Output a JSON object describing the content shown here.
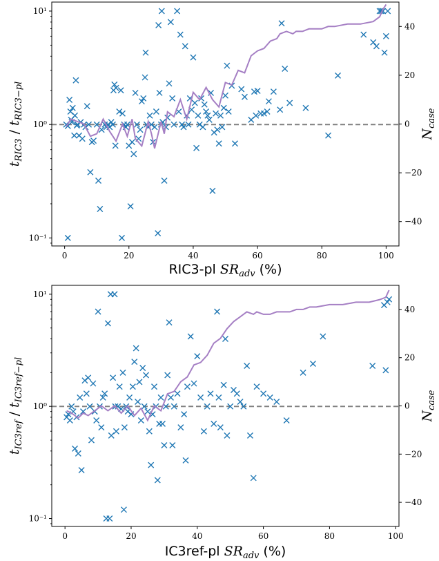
{
  "chart_data": [
    {
      "type": "scatter",
      "xlabel_prefix": "RIC3-pl ",
      "xlabel_math": "SR",
      "xlabel_sub": "adv",
      "xlabel_suffix": " (%)",
      "ylabel_main": "t",
      "ylabel_sub1": "RIC3",
      "ylabel_sub2": "RIC3−pl",
      "y2label_main": "N",
      "y2label_sub": "case",
      "xlim": [
        -4,
        104
      ],
      "ylim": [
        0.085,
        12
      ],
      "yscale": "log",
      "y2lim": [
        -50,
        50
      ],
      "x_ticks": [
        "0",
        "20",
        "40",
        "60",
        "80",
        "100"
      ],
      "y_ticks": [
        "10⁻¹",
        "10⁰",
        "10¹"
      ],
      "y2_ticks": [
        "−40",
        "−20",
        "0",
        "20",
        "40"
      ],
      "reference_y": 1.0,
      "points": [
        [
          1.0,
          0.1
        ],
        [
          0.5,
          1.0
        ],
        [
          1.0,
          0.97
        ],
        [
          1.5,
          1.65
        ],
        [
          1.8,
          1.3
        ],
        [
          2.0,
          1.1
        ],
        [
          2.2,
          1.05
        ],
        [
          2.5,
          1.4
        ],
        [
          3.0,
          0.8
        ],
        [
          3.2,
          1.2
        ],
        [
          3.5,
          2.45
        ],
        [
          3.8,
          0.98
        ],
        [
          4.0,
          1.0
        ],
        [
          4.5,
          0.8
        ],
        [
          5.0,
          1.05
        ],
        [
          5.5,
          0.75
        ],
        [
          6.0,
          1.0
        ],
        [
          6.5,
          0.95
        ],
        [
          7.0,
          1.45
        ],
        [
          7.5,
          1.0
        ],
        [
          8.0,
          0.38
        ],
        [
          8.5,
          0.7
        ],
        [
          9.0,
          0.72
        ],
        [
          10.0,
          1.0
        ],
        [
          10.5,
          0.32
        ],
        [
          11.0,
          0.18
        ],
        [
          11.5,
          0.9
        ],
        [
          12.5,
          1.0
        ],
        [
          13.0,
          0.95
        ],
        [
          13.5,
          1.0
        ],
        [
          14.0,
          0.95
        ],
        [
          14.5,
          1.05
        ],
        [
          15.0,
          1.0
        ],
        [
          15.2,
          2.0
        ],
        [
          15.5,
          2.25
        ],
        [
          15.8,
          0.65
        ],
        [
          16.0,
          2.1
        ],
        [
          17.0,
          1.3
        ],
        [
          17.5,
          2.0
        ],
        [
          17.8,
          0.1
        ],
        [
          18.0,
          1.25
        ],
        [
          18.5,
          1.0
        ],
        [
          19.0,
          0.95
        ],
        [
          19.5,
          1.0
        ],
        [
          20.0,
          0.65
        ],
        [
          20.5,
          0.19
        ],
        [
          21.0,
          0.7
        ],
        [
          21.5,
          0.55
        ],
        [
          22.0,
          1.9
        ],
        [
          22.5,
          1.0
        ],
        [
          23.0,
          0.75
        ],
        [
          23.5,
          0.9
        ],
        [
          24.0,
          1.6
        ],
        [
          24.5,
          1.7
        ],
        [
          25.0,
          2.6
        ],
        [
          25.2,
          4.3
        ],
        [
          25.5,
          1.0
        ],
        [
          26.0,
          0.95
        ],
        [
          26.5,
          1.2
        ],
        [
          27.0,
          1.0
        ],
        [
          27.5,
          0.7
        ],
        [
          28.0,
          0.95
        ],
        [
          28.5,
          1.3
        ],
        [
          29.0,
          0.11
        ],
        [
          29.2,
          7.5
        ],
        [
          29.5,
          1.9
        ],
        [
          30.0,
          1.0
        ],
        [
          30.2,
          10.0
        ],
        [
          30.5,
          1.05
        ],
        [
          31.0,
          0.32
        ],
        [
          31.5,
          0.95
        ],
        [
          32.0,
          1.15
        ],
        [
          32.5,
          2.3
        ],
        [
          33.0,
          8.0
        ],
        [
          33.5,
          1.7
        ],
        [
          34.0,
          1.0
        ],
        [
          35.0,
          10.0
        ],
        [
          35.5,
          1.3
        ],
        [
          36.0,
          6.2
        ],
        [
          36.5,
          1.0
        ],
        [
          37.0,
          0.95
        ],
        [
          37.5,
          4.9
        ],
        [
          38.0,
          1.2
        ],
        [
          38.5,
          1.0
        ],
        [
          39.0,
          1.7
        ],
        [
          39.5,
          1.35
        ],
        [
          40.0,
          3.9
        ],
        [
          40.5,
          1.55
        ],
        [
          41.0,
          0.62
        ],
        [
          41.5,
          1.2
        ],
        [
          42.0,
          1.0
        ],
        [
          42.5,
          1.7
        ],
        [
          43.0,
          0.95
        ],
        [
          43.5,
          1.5
        ],
        [
          44.0,
          1.3
        ],
        [
          44.5,
          1.2
        ],
        [
          45.0,
          1.1
        ],
        [
          45.5,
          1.9
        ],
        [
          46.0,
          0.26
        ],
        [
          46.5,
          0.85
        ],
        [
          47.0,
          1.25
        ],
        [
          47.5,
          0.9
        ],
        [
          48.0,
          0.68
        ],
        [
          48.5,
          1.2
        ],
        [
          49.0,
          0.95
        ],
        [
          49.5,
          1.4
        ],
        [
          50.0,
          1.8
        ],
        [
          50.5,
          3.3
        ],
        [
          51.0,
          1.3
        ],
        [
          52.0,
          2.2
        ],
        [
          53.0,
          0.68
        ],
        [
          55.0,
          2.05
        ],
        [
          56.0,
          1.75
        ],
        [
          58.0,
          1.1
        ],
        [
          59.0,
          1.95
        ],
        [
          59.5,
          1.2
        ],
        [
          60.0,
          1.98
        ],
        [
          61.0,
          1.25
        ],
        [
          62.0,
          1.25
        ],
        [
          63.0,
          1.3
        ],
        [
          63.5,
          1.6
        ],
        [
          65.0,
          1.95
        ],
        [
          67.0,
          1.35
        ],
        [
          67.5,
          7.8
        ],
        [
          68.5,
          3.1
        ],
        [
          70.0,
          1.55
        ],
        [
          75.0,
          1.4
        ],
        [
          82.0,
          0.8
        ],
        [
          85.0,
          2.7
        ],
        [
          93.0,
          6.2
        ],
        [
          96.0,
          5.3
        ],
        [
          97.0,
          4.9
        ],
        [
          98.0,
          10.0
        ],
        [
          98.5,
          10.0
        ],
        [
          99.0,
          10.0
        ],
        [
          99.5,
          4.3
        ],
        [
          100.0,
          6.0
        ],
        [
          100.5,
          10.0
        ]
      ],
      "ncase_line": [
        [
          0.5,
          -1
        ],
        [
          2,
          2
        ],
        [
          4,
          1
        ],
        [
          6,
          0
        ],
        [
          8,
          -5
        ],
        [
          10,
          -4
        ],
        [
          12,
          2
        ],
        [
          14,
          -3
        ],
        [
          16,
          -7
        ],
        [
          18,
          0
        ],
        [
          19.5,
          -5
        ],
        [
          21,
          2
        ],
        [
          22,
          -6
        ],
        [
          24,
          -9
        ],
        [
          26,
          1
        ],
        [
          27,
          -4
        ],
        [
          28,
          -10
        ],
        [
          30,
          1
        ],
        [
          31,
          -4
        ],
        [
          32,
          5
        ],
        [
          34,
          3
        ],
        [
          36,
          10
        ],
        [
          38,
          2
        ],
        [
          40,
          13
        ],
        [
          42,
          10
        ],
        [
          44,
          15
        ],
        [
          46,
          10
        ],
        [
          48,
          7
        ],
        [
          49,
          12
        ],
        [
          50,
          17
        ],
        [
          52,
          16
        ],
        [
          54,
          22
        ],
        [
          56,
          21
        ],
        [
          58,
          28
        ],
        [
          60,
          30
        ],
        [
          62,
          31
        ],
        [
          64,
          34
        ],
        [
          66,
          35
        ],
        [
          67,
          37
        ],
        [
          69,
          38
        ],
        [
          71,
          37
        ],
        [
          72,
          38
        ],
        [
          74,
          38
        ],
        [
          76,
          39
        ],
        [
          78,
          39
        ],
        [
          80,
          39
        ],
        [
          82,
          40
        ],
        [
          84,
          40
        ],
        [
          88,
          41
        ],
        [
          92,
          41
        ],
        [
          96,
          42
        ],
        [
          98,
          44
        ],
        [
          99,
          47
        ],
        [
          100,
          49
        ]
      ]
    },
    {
      "type": "scatter",
      "xlabel_prefix": "IC3ref-pl ",
      "xlabel_math": "SR",
      "xlabel_sub": "adv",
      "xlabel_suffix": " (%)",
      "ylabel_main": "t",
      "ylabel_sub1": "IC3ref",
      "ylabel_sub2": "IC3ref−pl",
      "y2label_main": "N",
      "y2label_sub": "case",
      "xlim": [
        -4,
        101
      ],
      "ylim": [
        0.085,
        12
      ],
      "yscale": "log",
      "y2lim": [
        -50,
        50
      ],
      "x_ticks": [
        "0",
        "20",
        "40",
        "60",
        "80",
        "100"
      ],
      "y_ticks": [
        "10⁻¹",
        "10⁰",
        "10¹"
      ],
      "y2_ticks": [
        "−40",
        "−20",
        "0",
        "20",
        "40"
      ],
      "reference_y": 1.0,
      "points": [
        [
          0.5,
          0.8
        ],
        [
          1.0,
          0.85
        ],
        [
          1.5,
          0.75
        ],
        [
          2.0,
          1.0
        ],
        [
          2.5,
          0.9
        ],
        [
          3.0,
          0.42
        ],
        [
          3.5,
          0.8
        ],
        [
          4.0,
          0.38
        ],
        [
          4.5,
          1.2
        ],
        [
          5.0,
          0.27
        ],
        [
          5.5,
          0.9
        ],
        [
          6.0,
          1.7
        ],
        [
          6.5,
          1.3
        ],
        [
          7.0,
          1.8
        ],
        [
          7.5,
          1.0
        ],
        [
          8.0,
          0.5
        ],
        [
          8.5,
          1.6
        ],
        [
          9.0,
          0.9
        ],
        [
          9.5,
          0.75
        ],
        [
          10.0,
          7.0
        ],
        [
          10.5,
          1.0
        ],
        [
          11.0,
          0.65
        ],
        [
          11.5,
          1.2
        ],
        [
          12.0,
          1.3
        ],
        [
          12.5,
          0.1
        ],
        [
          13.0,
          5.5
        ],
        [
          13.5,
          0.1
        ],
        [
          13.8,
          10.0
        ],
        [
          14.0,
          0.55
        ],
        [
          14.5,
          1.8
        ],
        [
          15.0,
          10.0
        ],
        [
          15.2,
          1.0
        ],
        [
          15.5,
          0.6
        ],
        [
          16.0,
          1.0
        ],
        [
          16.5,
          1.5
        ],
        [
          17.0,
          0.95
        ],
        [
          17.5,
          2.0
        ],
        [
          17.8,
          0.12
        ],
        [
          18.0,
          0.65
        ],
        [
          18.5,
          1.0
        ],
        [
          19.0,
          0.9
        ],
        [
          19.5,
          1.2
        ],
        [
          20.0,
          0.85
        ],
        [
          20.5,
          1.5
        ],
        [
          21.0,
          2.5
        ],
        [
          21.5,
          3.3
        ],
        [
          22.0,
          1.1
        ],
        [
          22.5,
          1.65
        ],
        [
          23.0,
          0.75
        ],
        [
          23.5,
          2.2
        ],
        [
          24.0,
          1.0
        ],
        [
          24.5,
          1.9
        ],
        [
          25.0,
          0.9
        ],
        [
          25.5,
          0.6
        ],
        [
          26.0,
          0.3
        ],
        [
          26.5,
          0.85
        ],
        [
          27.0,
          1.5
        ],
        [
          27.5,
          1.0
        ],
        [
          28.0,
          0.22
        ],
        [
          28.5,
          0.7
        ],
        [
          29.0,
          1.2
        ],
        [
          29.5,
          0.7
        ],
        [
          30.0,
          0.45
        ],
        [
          30.5,
          1.0
        ],
        [
          31.0,
          1.9
        ],
        [
          31.5,
          5.6
        ],
        [
          32.0,
          1.2
        ],
        [
          32.5,
          0.45
        ],
        [
          33.0,
          1.0
        ],
        [
          34.0,
          1.3
        ],
        [
          35.0,
          0.65
        ],
        [
          36.0,
          0.85
        ],
        [
          36.5,
          0.33
        ],
        [
          37.0,
          1.5
        ],
        [
          38.0,
          4.2
        ],
        [
          39.0,
          1.6
        ],
        [
          40.0,
          2.8
        ],
        [
          41.0,
          1.2
        ],
        [
          42.0,
          0.6
        ],
        [
          43.0,
          1.0
        ],
        [
          44.0,
          1.3
        ],
        [
          45.0,
          0.7
        ],
        [
          46.0,
          7.0
        ],
        [
          46.5,
          1.2
        ],
        [
          47.0,
          0.65
        ],
        [
          48.0,
          1.55
        ],
        [
          48.5,
          4.0
        ],
        [
          49.0,
          0.55
        ],
        [
          50.0,
          1.0
        ],
        [
          51.0,
          1.4
        ],
        [
          52.0,
          1.3
        ],
        [
          53.0,
          1.1
        ],
        [
          54.0,
          1.0
        ],
        [
          55.0,
          2.3
        ],
        [
          56.0,
          0.55
        ],
        [
          57.0,
          0.23
        ],
        [
          58.0,
          1.5
        ],
        [
          60.0,
          1.3
        ],
        [
          62.0,
          1.2
        ],
        [
          64.0,
          1.1
        ],
        [
          67.0,
          0.75
        ],
        [
          72.0,
          2.0
        ],
        [
          75.0,
          2.4
        ],
        [
          78.0,
          4.2
        ],
        [
          93.0,
          2.3
        ],
        [
          96.5,
          8.0
        ],
        [
          97.0,
          2.1
        ],
        [
          97.5,
          8.5
        ],
        [
          98.0,
          9.0
        ]
      ],
      "ncase_line": [
        [
          0.5,
          -2
        ],
        [
          2,
          -3
        ],
        [
          4,
          -5
        ],
        [
          5.5,
          -3
        ],
        [
          7,
          -4
        ],
        [
          9,
          -2
        ],
        [
          11,
          0
        ],
        [
          13,
          -2
        ],
        [
          15,
          0
        ],
        [
          17,
          -3
        ],
        [
          19,
          0
        ],
        [
          21,
          -4
        ],
        [
          23,
          -1
        ],
        [
          25,
          -6
        ],
        [
          27,
          0
        ],
        [
          29,
          -2
        ],
        [
          31,
          5
        ],
        [
          33,
          6
        ],
        [
          35,
          10
        ],
        [
          37,
          12
        ],
        [
          39,
          17
        ],
        [
          41,
          18
        ],
        [
          43,
          21
        ],
        [
          45,
          26
        ],
        [
          47,
          28
        ],
        [
          49,
          32
        ],
        [
          51,
          35
        ],
        [
          53,
          37
        ],
        [
          54,
          38
        ],
        [
          55,
          39
        ],
        [
          57,
          38
        ],
        [
          58,
          39
        ],
        [
          60,
          38
        ],
        [
          62,
          38
        ],
        [
          64,
          39
        ],
        [
          66,
          39
        ],
        [
          68,
          39
        ],
        [
          70,
          40
        ],
        [
          72,
          40
        ],
        [
          74,
          41
        ],
        [
          76,
          41
        ],
        [
          80,
          42
        ],
        [
          84,
          42
        ],
        [
          88,
          43
        ],
        [
          92,
          43
        ],
        [
          95,
          44
        ],
        [
          97,
          45
        ],
        [
          98,
          48
        ]
      ]
    }
  ]
}
